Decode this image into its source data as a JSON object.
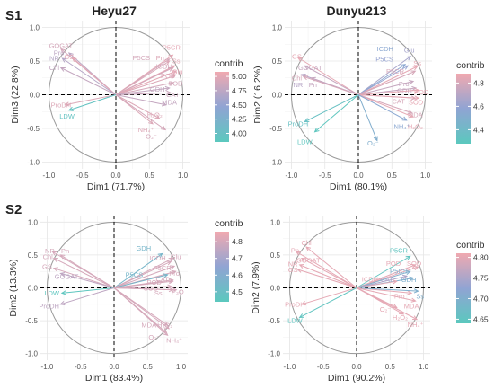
{
  "figure": {
    "row_labels": [
      "S1",
      "S2"
    ],
    "column_titles": [
      "Heyu27",
      "Dunyu213"
    ]
  },
  "colors": {
    "grid": "#e6e6e6",
    "circle": "#9a9a9a",
    "low": "#5bc8be",
    "mid": "#90a4d3",
    "high": "#f0a9b0"
  },
  "chart_data": [
    {
      "type": "scatter",
      "subtype": "pca-variable-biplot",
      "xlabel": "Dim1 (71.7%)",
      "ylabel": "Dim3 (22.8%)",
      "xlim": [
        -1.1,
        1.1
      ],
      "ylim": [
        -1.1,
        1.1
      ],
      "xticks": [
        -1.0,
        -0.5,
        0.0,
        0.5,
        1.0
      ],
      "yticks": [
        -1.0,
        -0.5,
        0.0,
        0.5,
        1.0
      ],
      "xtick_labels": [
        "-1.0",
        "-0.5",
        "0.0",
        "0.5",
        "1.0"
      ],
      "ytick_labels": [
        "-1.0",
        "-0.5",
        "0.0",
        "0.5",
        "1.0"
      ],
      "legend": {
        "title": "contrib",
        "min": 3.85,
        "max": 5.08,
        "ticks": [
          5.0,
          4.75,
          4.5,
          4.25,
          4.0
        ],
        "tick_labels": [
          "5.00",
          "4.75",
          "4.50",
          "4.25",
          "4.00"
        ]
      },
      "variables": [
        {
          "name": "P5CR",
          "x": 0.85,
          "y": 0.59,
          "contrib": 5.0,
          "lx": 0.83,
          "ly": 0.7
        },
        {
          "name": "P5CS",
          "x": 0.8,
          "y": 0.53,
          "contrib": 4.9,
          "lx": 0.38,
          "ly": 0.55
        },
        {
          "name": "Pn",
          "x": 0.8,
          "y": 0.5,
          "contrib": 4.95,
          "lx": 0.66,
          "ly": 0.55
        },
        {
          "name": "Ss",
          "x": 0.88,
          "y": 0.43,
          "contrib": 5.0,
          "lx": 0.9,
          "ly": 0.5
        },
        {
          "name": "ICDH",
          "x": 0.85,
          "y": 0.4,
          "contrib": 4.9,
          "lx": 0.72,
          "ly": 0.42
        },
        {
          "name": "Glu",
          "x": 0.9,
          "y": 0.35,
          "contrib": 5.0,
          "lx": 0.92,
          "ly": 0.34
        },
        {
          "name": "POD",
          "x": 0.88,
          "y": 0.28,
          "contrib": 4.95,
          "lx": 0.78,
          "ly": 0.28
        },
        {
          "name": "SOD",
          "x": 0.86,
          "y": 0.18,
          "contrib": 4.9,
          "lx": 0.89,
          "ly": 0.17
        },
        {
          "name": "GDH",
          "x": 0.8,
          "y": 0.1,
          "contrib": 4.8,
          "lx": 0.62,
          "ly": 0.08
        },
        {
          "name": "CAT",
          "x": 0.82,
          "y": 0.03,
          "contrib": 4.85,
          "lx": 0.85,
          "ly": 0.0
        },
        {
          "name": "MDA",
          "x": 0.75,
          "y": -0.15,
          "contrib": 4.8,
          "lx": 0.8,
          "ly": -0.11
        },
        {
          "name": "NH₄⁺",
          "x": 0.55,
          "y": -0.43,
          "contrib": 4.95,
          "lx": 0.45,
          "ly": -0.52
        },
        {
          "name": "H₂O₂",
          "x": 0.65,
          "y": -0.35,
          "contrib": 4.95,
          "lx": 0.58,
          "ly": -0.3
        },
        {
          "name": "O₂⁻",
          "x": 0.74,
          "y": -0.52,
          "contrib": 4.9,
          "lx": 0.53,
          "ly": -0.62
        },
        {
          "name": "GOGAT",
          "x": -0.82,
          "y": 0.68,
          "contrib": 4.9,
          "lx": -0.82,
          "ly": 0.73
        },
        {
          "name": "Pro",
          "x": -0.7,
          "y": 0.62,
          "contrib": 4.75,
          "lx": -0.85,
          "ly": 0.62
        },
        {
          "name": "GS",
          "x": -0.65,
          "y": 0.55,
          "contrib": 5.0,
          "lx": -0.7,
          "ly": 0.56
        },
        {
          "name": "NR",
          "x": -0.8,
          "y": 0.54,
          "contrib": 4.7,
          "lx": -0.92,
          "ly": 0.54
        },
        {
          "name": "Chl",
          "x": -0.82,
          "y": 0.4,
          "contrib": 4.8,
          "lx": -0.92,
          "ly": 0.4
        },
        {
          "name": "ProDH",
          "x": -0.76,
          "y": -0.15,
          "contrib": 4.95,
          "lx": -0.82,
          "ly": -0.15
        },
        {
          "name": "LDW",
          "x": -0.7,
          "y": -0.23,
          "contrib": 3.95,
          "lx": -0.73,
          "ly": -0.32
        }
      ]
    },
    {
      "type": "scatter",
      "subtype": "pca-variable-biplot",
      "xlabel": "Dim1 (80.1%)",
      "ylabel": "Dim2 (16.2%)",
      "xlim": [
        -1.1,
        1.1
      ],
      "ylim": [
        -1.1,
        1.1
      ],
      "xticks": [
        -1.0,
        -0.5,
        0.0,
        0.5,
        1.0
      ],
      "yticks": [
        -1.0,
        -0.5,
        0.0,
        0.5,
        1.0
      ],
      "xtick_labels": [
        "-1.0",
        "-0.5",
        "0.0",
        "0.5",
        "1.0"
      ],
      "ytick_labels": [
        "-1.0",
        "-0.5",
        "0.0",
        "0.5",
        "1.0"
      ],
      "legend": {
        "title": "contrib",
        "min": 4.28,
        "max": 4.88,
        "ticks": [
          4.8,
          4.6,
          4.4
        ],
        "tick_labels": [
          "4.8",
          "4.6",
          "4.4"
        ]
      },
      "variables": [
        {
          "name": "Glu",
          "x": 0.78,
          "y": 0.57,
          "contrib": 4.65,
          "lx": 0.76,
          "ly": 0.66
        },
        {
          "name": "ICDH",
          "x": 0.7,
          "y": 0.45,
          "contrib": 4.55,
          "lx": 0.4,
          "ly": 0.68
        },
        {
          "name": "P5CS",
          "x": 0.74,
          "y": 0.43,
          "contrib": 4.6,
          "lx": 0.39,
          "ly": 0.53
        },
        {
          "name": "Ss",
          "x": 0.88,
          "y": 0.42,
          "contrib": 4.85,
          "lx": 0.88,
          "ly": 0.47
        },
        {
          "name": "P5CR",
          "x": 0.85,
          "y": 0.35,
          "contrib": 4.8,
          "lx": 0.55,
          "ly": 0.35
        },
        {
          "name": "Pro",
          "x": 0.82,
          "y": 0.2,
          "contrib": 4.75,
          "lx": 0.68,
          "ly": 0.16
        },
        {
          "name": "GDH",
          "x": 0.86,
          "y": 0.1,
          "contrib": 4.75,
          "lx": 0.69,
          "ly": 0.06
        },
        {
          "name": "POD",
          "x": 0.9,
          "y": 0.07,
          "contrib": 4.85,
          "lx": 0.94,
          "ly": 0.04
        },
        {
          "name": "CAT",
          "x": 0.85,
          "y": -0.05,
          "contrib": 4.8,
          "lx": 0.6,
          "ly": -0.1
        },
        {
          "name": "SOD",
          "x": 0.9,
          "y": -0.05,
          "contrib": 4.85,
          "lx": 0.86,
          "ly": -0.11
        },
        {
          "name": "MDA",
          "x": 0.8,
          "y": -0.27,
          "contrib": 4.8,
          "lx": 0.85,
          "ly": -0.3
        },
        {
          "name": "H₂O₂",
          "x": 0.82,
          "y": -0.33,
          "contrib": 4.85,
          "lx": 0.85,
          "ly": -0.47
        },
        {
          "name": "NH₄⁺",
          "x": 0.72,
          "y": -0.38,
          "contrib": 4.55,
          "lx": 0.65,
          "ly": -0.47
        },
        {
          "name": "O₂⁻",
          "x": 0.28,
          "y": -0.68,
          "contrib": 4.5,
          "lx": 0.22,
          "ly": -0.72
        },
        {
          "name": "GS",
          "x": -0.9,
          "y": 0.55,
          "contrib": 4.85,
          "lx": -0.92,
          "ly": 0.57
        },
        {
          "name": "GOGAT",
          "x": -0.8,
          "y": 0.43,
          "contrib": 4.75,
          "lx": -0.72,
          "ly": 0.4
        },
        {
          "name": "NR",
          "x": -0.85,
          "y": 0.3,
          "contrib": 4.7,
          "lx": -0.9,
          "ly": 0.15
        },
        {
          "name": "Pn",
          "x": -0.7,
          "y": 0.25,
          "contrib": 4.75,
          "lx": -0.68,
          "ly": 0.15
        },
        {
          "name": "Chl",
          "x": -0.82,
          "y": 0.27,
          "contrib": 4.8,
          "lx": -0.92,
          "ly": 0.25
        },
        {
          "name": "ProDH",
          "x": -0.8,
          "y": -0.4,
          "contrib": 4.35,
          "lx": -0.9,
          "ly": -0.43
        },
        {
          "name": "LDW",
          "x": -0.65,
          "y": -0.55,
          "contrib": 4.3,
          "lx": -0.8,
          "ly": -0.7
        }
      ]
    },
    {
      "type": "scatter",
      "subtype": "pca-variable-biplot",
      "xlabel": "Dim1 (83.4%)",
      "ylabel": "Dim2 (13.3%)",
      "xlim": [
        -1.1,
        1.1
      ],
      "ylim": [
        -1.1,
        1.1
      ],
      "xticks": [
        -1.0,
        -0.5,
        0.0,
        0.5,
        1.0
      ],
      "yticks": [
        -1.0,
        -0.5,
        0.0,
        0.5,
        1.0
      ],
      "xtick_labels": [
        "-1.0",
        "-0.5",
        "0.0",
        "0.5",
        "1.0"
      ],
      "ytick_labels": [
        "-1.0",
        "-0.5",
        "0.0",
        "0.5",
        "1.0"
      ],
      "legend": {
        "title": "contrib",
        "min": 4.44,
        "max": 4.86,
        "ticks": [
          4.8,
          4.7,
          4.6,
          4.5
        ],
        "tick_labels": [
          "4.8",
          "4.7",
          "4.6",
          "4.5"
        ]
      },
      "variables": [
        {
          "name": "GDH",
          "x": 0.72,
          "y": 0.52,
          "contrib": 4.55,
          "lx": 0.44,
          "ly": 0.6
        },
        {
          "name": "Glu",
          "x": 0.88,
          "y": 0.45,
          "contrib": 4.8,
          "lx": 0.92,
          "ly": 0.47
        },
        {
          "name": "ICDH",
          "x": 0.85,
          "y": 0.4,
          "contrib": 4.8,
          "lx": 0.65,
          "ly": 0.45
        },
        {
          "name": "P5CR",
          "x": 0.9,
          "y": 0.33,
          "contrib": 4.8,
          "lx": 0.72,
          "ly": 0.3
        },
        {
          "name": "Pro",
          "x": 0.92,
          "y": 0.25,
          "contrib": 4.8,
          "lx": 0.9,
          "ly": 0.22
        },
        {
          "name": "P5CS",
          "x": 0.8,
          "y": 0.2,
          "contrib": 4.55,
          "lx": 0.3,
          "ly": 0.2
        },
        {
          "name": "CAT",
          "x": 0.88,
          "y": 0.12,
          "contrib": 4.8,
          "lx": 0.72,
          "ly": 0.13
        },
        {
          "name": "POD",
          "x": 0.88,
          "y": 0.1,
          "contrib": 4.8,
          "lx": 0.6,
          "ly": 0.08
        },
        {
          "name": "SOD",
          "x": 0.86,
          "y": 0.02,
          "contrib": 4.8,
          "lx": 0.55,
          "ly": -0.01
        },
        {
          "name": "Ss",
          "x": 0.88,
          "y": -0.03,
          "contrib": 4.8,
          "lx": 0.66,
          "ly": -0.08
        },
        {
          "name": "P₃O",
          "x": 0.93,
          "y": -0.03,
          "contrib": 4.8,
          "lx": 0.95,
          "ly": -0.06
        },
        {
          "name": "MDA",
          "x": 0.8,
          "y": -0.57,
          "contrib": 4.8,
          "lx": 0.52,
          "ly": -0.57
        },
        {
          "name": "H₂O₂",
          "x": 0.82,
          "y": -0.62,
          "contrib": 4.8,
          "lx": 0.76,
          "ly": -0.57
        },
        {
          "name": "O₂⁻",
          "x": 0.78,
          "y": -0.68,
          "contrib": 4.8,
          "lx": 0.6,
          "ly": -0.75
        },
        {
          "name": "NH₄⁺",
          "x": 0.8,
          "y": -0.72,
          "contrib": 4.8,
          "lx": 0.9,
          "ly": -0.8
        },
        {
          "name": "NR",
          "x": -0.92,
          "y": 0.55,
          "contrib": 4.8,
          "lx": -0.96,
          "ly": 0.56
        },
        {
          "name": "Pn",
          "x": -0.8,
          "y": 0.5,
          "contrib": 4.8,
          "lx": -0.73,
          "ly": 0.56
        },
        {
          "name": "Chl",
          "x": -0.9,
          "y": 0.45,
          "contrib": 4.8,
          "lx": -0.99,
          "ly": 0.47
        },
        {
          "name": "GS",
          "x": -0.9,
          "y": 0.3,
          "contrib": 4.8,
          "lx": -1.0,
          "ly": 0.32
        },
        {
          "name": "GOGAT",
          "x": -0.8,
          "y": 0.22,
          "contrib": 4.75,
          "lx": -0.71,
          "ly": 0.17
        },
        {
          "name": "LDW",
          "x": -0.78,
          "y": -0.08,
          "contrib": 4.45,
          "lx": -0.93,
          "ly": -0.08
        },
        {
          "name": "ProDH",
          "x": -0.8,
          "y": -0.25,
          "contrib": 4.75,
          "lx": -0.97,
          "ly": -0.28
        }
      ]
    },
    {
      "type": "scatter",
      "subtype": "pca-variable-biplot",
      "xlabel": "Dim1 (90.2%)",
      "ylabel": "Dim2 (7.9%)",
      "xlim": [
        -1.1,
        1.1
      ],
      "ylim": [
        -1.1,
        1.1
      ],
      "xticks": [
        -1.0,
        -0.5,
        0.0,
        0.5,
        1.0
      ],
      "yticks": [
        -1.0,
        -0.5,
        0.0,
        0.5,
        1.0
      ],
      "xtick_labels": [
        "-1.0",
        "-0.5",
        "0.0",
        "0.5",
        "1.0"
      ],
      "ytick_labels": [
        "-1.0",
        "-0.5",
        "0.0",
        "0.5",
        "1.0"
      ],
      "legend": {
        "title": "contrib",
        "min": 4.64,
        "max": 4.81,
        "ticks": [
          4.8,
          4.75,
          4.7,
          4.65
        ],
        "tick_labels": [
          "4.80",
          "4.75",
          "4.70",
          "4.65"
        ]
      },
      "variables": [
        {
          "name": "P5CR",
          "x": 0.8,
          "y": 0.48,
          "contrib": 4.65,
          "lx": 0.63,
          "ly": 0.57
        },
        {
          "name": "POD",
          "x": 0.88,
          "y": 0.35,
          "contrib": 4.8,
          "lx": 0.55,
          "ly": 0.37
        },
        {
          "name": "SOD",
          "x": 0.92,
          "y": 0.32,
          "contrib": 4.8,
          "lx": 0.86,
          "ly": 0.37
        },
        {
          "name": "P5CS",
          "x": 0.8,
          "y": 0.25,
          "contrib": 4.7,
          "lx": 0.63,
          "ly": 0.25
        },
        {
          "name": "CAT",
          "x": 0.75,
          "y": 0.18,
          "contrib": 4.75,
          "lx": 0.45,
          "ly": 0.13
        },
        {
          "name": "GDH",
          "x": 0.85,
          "y": 0.15,
          "contrib": 4.7,
          "lx": 0.78,
          "ly": 0.12
        },
        {
          "name": "Pro",
          "x": 0.82,
          "y": -0.08,
          "contrib": 4.8,
          "lx": 0.64,
          "ly": -0.13
        },
        {
          "name": "Ss",
          "x": 0.92,
          "y": -0.05,
          "contrib": 4.7,
          "lx": 0.95,
          "ly": -0.13
        },
        {
          "name": "MDA",
          "x": 0.88,
          "y": -0.2,
          "contrib": 4.8,
          "lx": 0.82,
          "ly": -0.28
        },
        {
          "name": "O₂⁻",
          "x": 0.6,
          "y": -0.3,
          "contrib": 4.8,
          "lx": 0.43,
          "ly": -0.33
        },
        {
          "name": "H₂O₂",
          "x": 0.7,
          "y": -0.4,
          "contrib": 4.8,
          "lx": 0.65,
          "ly": -0.45
        },
        {
          "name": "NH₄⁺",
          "x": 0.9,
          "y": -0.48,
          "contrib": 4.8,
          "lx": 0.88,
          "ly": -0.56
        },
        {
          "name": "ICDH",
          "x": 0.6,
          "y": 0.1,
          "contrib": 4.8,
          "lx": 0.2,
          "ly": 0.13
        },
        {
          "name": "Chl",
          "x": -0.75,
          "y": 0.62,
          "contrib": 4.8,
          "lx": -0.75,
          "ly": 0.68
        },
        {
          "name": "Pn",
          "x": -0.9,
          "y": 0.55,
          "contrib": 4.8,
          "lx": -0.92,
          "ly": 0.57
        },
        {
          "name": "GOGAT",
          "x": -0.82,
          "y": 0.45,
          "contrib": 4.8,
          "lx": -0.72,
          "ly": 0.42
        },
        {
          "name": "GS",
          "x": -0.88,
          "y": 0.28,
          "contrib": 4.8,
          "lx": -0.95,
          "ly": 0.27
        },
        {
          "name": "NR",
          "x": -0.85,
          "y": 0.35,
          "contrib": 4.8,
          "lx": -0.95,
          "ly": 0.36
        },
        {
          "name": "ProDH",
          "x": -0.82,
          "y": -0.25,
          "contrib": 4.8,
          "lx": -0.92,
          "ly": -0.25
        },
        {
          "name": "LDW",
          "x": -0.85,
          "y": -0.45,
          "contrib": 4.65,
          "lx": -0.92,
          "ly": -0.5
        }
      ]
    }
  ]
}
